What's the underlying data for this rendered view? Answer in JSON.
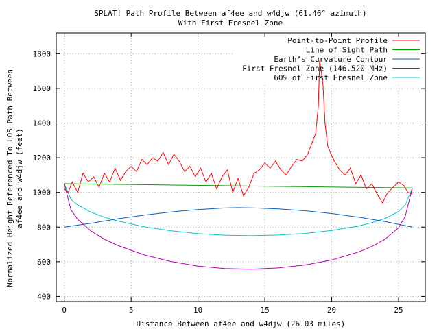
{
  "chart_data": {
    "type": "line",
    "title": "SPLAT! Path Profile Between af4ee and w4djw (61.46° azimuth)",
    "subtitle": "With First Fresnel Zone",
    "xlabel": "Distance Between af4ee and w4djw (26.03 miles)",
    "ylabel_lines": [
      "Normalized Height Referenced To LOS Path Between",
      "af4ee and w4djw (feet)"
    ],
    "xlim": [
      -0.6,
      27
    ],
    "ylim": [
      370,
      1920
    ],
    "x_ticks": [
      0,
      5,
      10,
      15,
      20,
      25
    ],
    "y_ticks": [
      400,
      600,
      800,
      1000,
      1200,
      1400,
      1600,
      1800
    ],
    "grid": true,
    "legend_position": "top-right",
    "path_length_miles": 26.03,
    "series": [
      {
        "name": "Point-to-Point Profile",
        "color": "#ff0000",
        "x": [
          0,
          0.3,
          0.6,
          1.0,
          1.4,
          1.8,
          2.2,
          2.6,
          3.0,
          3.4,
          3.8,
          4.2,
          4.6,
          5.0,
          5.4,
          5.8,
          6.2,
          6.6,
          7.0,
          7.4,
          7.8,
          8.2,
          8.6,
          9.0,
          9.4,
          9.8,
          10.2,
          10.6,
          11.0,
          11.4,
          11.8,
          12.2,
          12.6,
          13.0,
          13.4,
          13.8,
          14.2,
          14.6,
          15.0,
          15.4,
          15.8,
          16.2,
          16.6,
          17.0,
          17.4,
          17.8,
          18.2,
          18.5,
          18.8,
          19.0,
          19.1,
          19.2,
          19.35,
          19.5,
          19.7,
          19.9,
          20.2,
          20.6,
          21.0,
          21.4,
          21.8,
          22.2,
          22.6,
          23.0,
          23.4,
          23.8,
          24.2,
          24.6,
          25.0,
          25.4,
          25.7,
          26.03
        ],
        "y": [
          1020,
          1000,
          1060,
          1000,
          1110,
          1060,
          1090,
          1030,
          1110,
          1060,
          1140,
          1070,
          1120,
          1150,
          1120,
          1190,
          1160,
          1200,
          1180,
          1230,
          1160,
          1220,
          1180,
          1120,
          1150,
          1090,
          1140,
          1060,
          1110,
          1020,
          1090,
          1130,
          1000,
          1080,
          980,
          1030,
          1110,
          1130,
          1170,
          1140,
          1180,
          1130,
          1100,
          1150,
          1190,
          1180,
          1220,
          1280,
          1340,
          1500,
          1760,
          1710,
          1620,
          1400,
          1270,
          1230,
          1180,
          1130,
          1100,
          1140,
          1050,
          1100,
          1020,
          1050,
          990,
          940,
          1000,
          1030,
          1060,
          1040,
          1000,
          990
        ]
      },
      {
        "name": "Line of Sight Path",
        "color": "#00a000",
        "x": [
          0,
          26.03
        ],
        "y": [
          1050,
          1025
        ]
      },
      {
        "name": "Earth’s Curvature Contour",
        "color": "#0060c0",
        "x": [
          0,
          2,
          4,
          6,
          8,
          10,
          12,
          13,
          14,
          16,
          18,
          20,
          22,
          24,
          26.03
        ],
        "y": [
          800,
          822,
          848,
          869,
          887,
          901,
          910,
          912,
          911,
          905,
          894,
          878,
          857,
          832,
          800
        ]
      },
      {
        "name": "First Fresnel Zone (146.520 MHz)",
        "color": "#b000b0",
        "x": [
          0,
          0.5,
          1,
          2,
          3,
          4,
          6,
          8,
          10,
          12,
          14,
          16,
          18,
          20,
          22,
          23,
          24,
          25,
          25.5,
          26.03
        ],
        "y": [
          1050,
          900,
          845,
          777,
          730,
          694,
          639,
          601,
          575,
          561,
          557,
          564,
          581,
          610,
          656,
          688,
          730,
          796,
          862,
          1025
        ]
      },
      {
        "name": "60% of First Fresnel Zone",
        "color": "#00c8c8",
        "x": [
          0,
          0.5,
          1,
          2,
          3,
          4,
          6,
          8,
          10,
          12,
          14,
          16,
          18,
          20,
          22,
          23,
          24,
          25,
          25.5,
          26.03
        ],
        "y": [
          1050,
          960,
          927,
          886,
          857,
          835,
          801,
          778,
          762,
          753,
          750,
          754,
          763,
          780,
          806,
          825,
          850,
          889,
          928,
          1025
        ]
      }
    ]
  }
}
